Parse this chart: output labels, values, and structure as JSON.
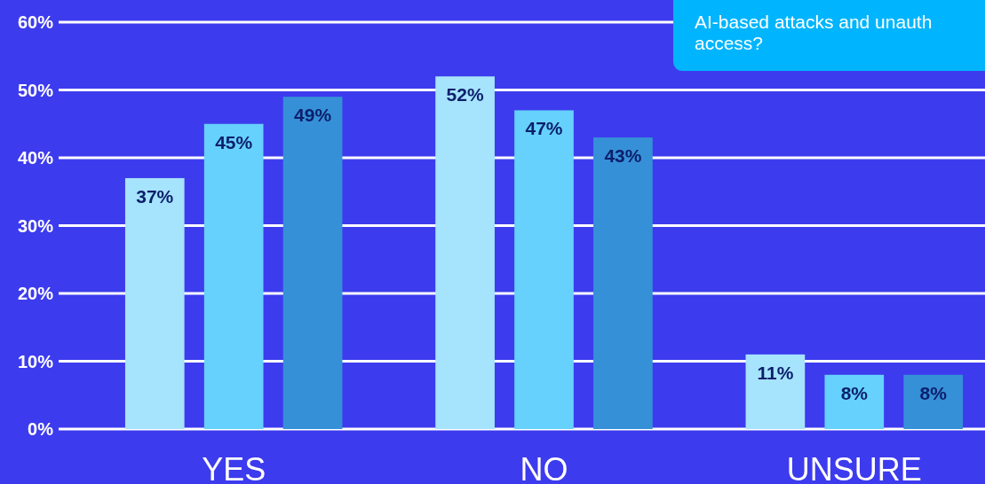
{
  "chart_data": {
    "type": "bar",
    "categories": [
      "YES",
      "NO",
      "UNSURE"
    ],
    "series": [
      {
        "color": "#a6e3fd",
        "values": [
          37,
          52,
          11
        ],
        "value_labels": [
          "37%",
          "52%",
          "11%"
        ]
      },
      {
        "color": "#66d1fc",
        "values": [
          45,
          47,
          8
        ],
        "value_labels": [
          "45%",
          "47%",
          "8%"
        ]
      },
      {
        "color": "#3690d8",
        "values": [
          49,
          43,
          8
        ],
        "value_labels": [
          "49%",
          "43%",
          "8%"
        ]
      }
    ],
    "ylim": [
      0,
      60
    ],
    "yticks": [
      {
        "value": 0,
        "label": "0%"
      },
      {
        "value": 10,
        "label": "10%"
      },
      {
        "value": 20,
        "label": "20%"
      },
      {
        "value": 30,
        "label": "30%"
      },
      {
        "value": 40,
        "label": "40%"
      },
      {
        "value": 50,
        "label": "50%"
      },
      {
        "value": 60,
        "label": "60%"
      }
    ],
    "grid": "y",
    "annotations": [
      "AI-based attacks and unauth",
      "access?"
    ]
  }
}
